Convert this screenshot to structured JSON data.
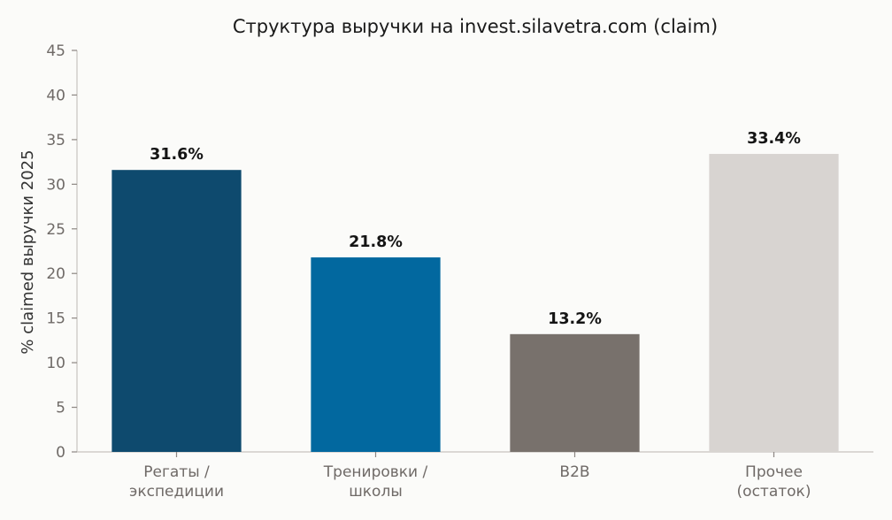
{
  "chart_data": {
    "type": "bar",
    "title": "Структура выручки на invest.silavetra.com (claim)",
    "xlabel": "",
    "ylabel": "% claimed выручки 2025",
    "ylim": [
      0,
      45
    ],
    "yticks": [
      0,
      5,
      10,
      15,
      20,
      25,
      30,
      35,
      40,
      45
    ],
    "categories": [
      [
        "Регаты /",
        "экспедиции"
      ],
      [
        "Тренировки /",
        "школы"
      ],
      [
        "B2B"
      ],
      [
        "Прочее",
        "(остаток)"
      ]
    ],
    "values": [
      31.6,
      21.8,
      13.2,
      33.4
    ],
    "data_labels": [
      "31.6%",
      "21.8%",
      "13.2%",
      "33.4%"
    ],
    "colors": [
      "#0e4a6e",
      "#02689f",
      "#78716c",
      "#d8d4d1"
    ],
    "grid": false,
    "legend": "none"
  }
}
